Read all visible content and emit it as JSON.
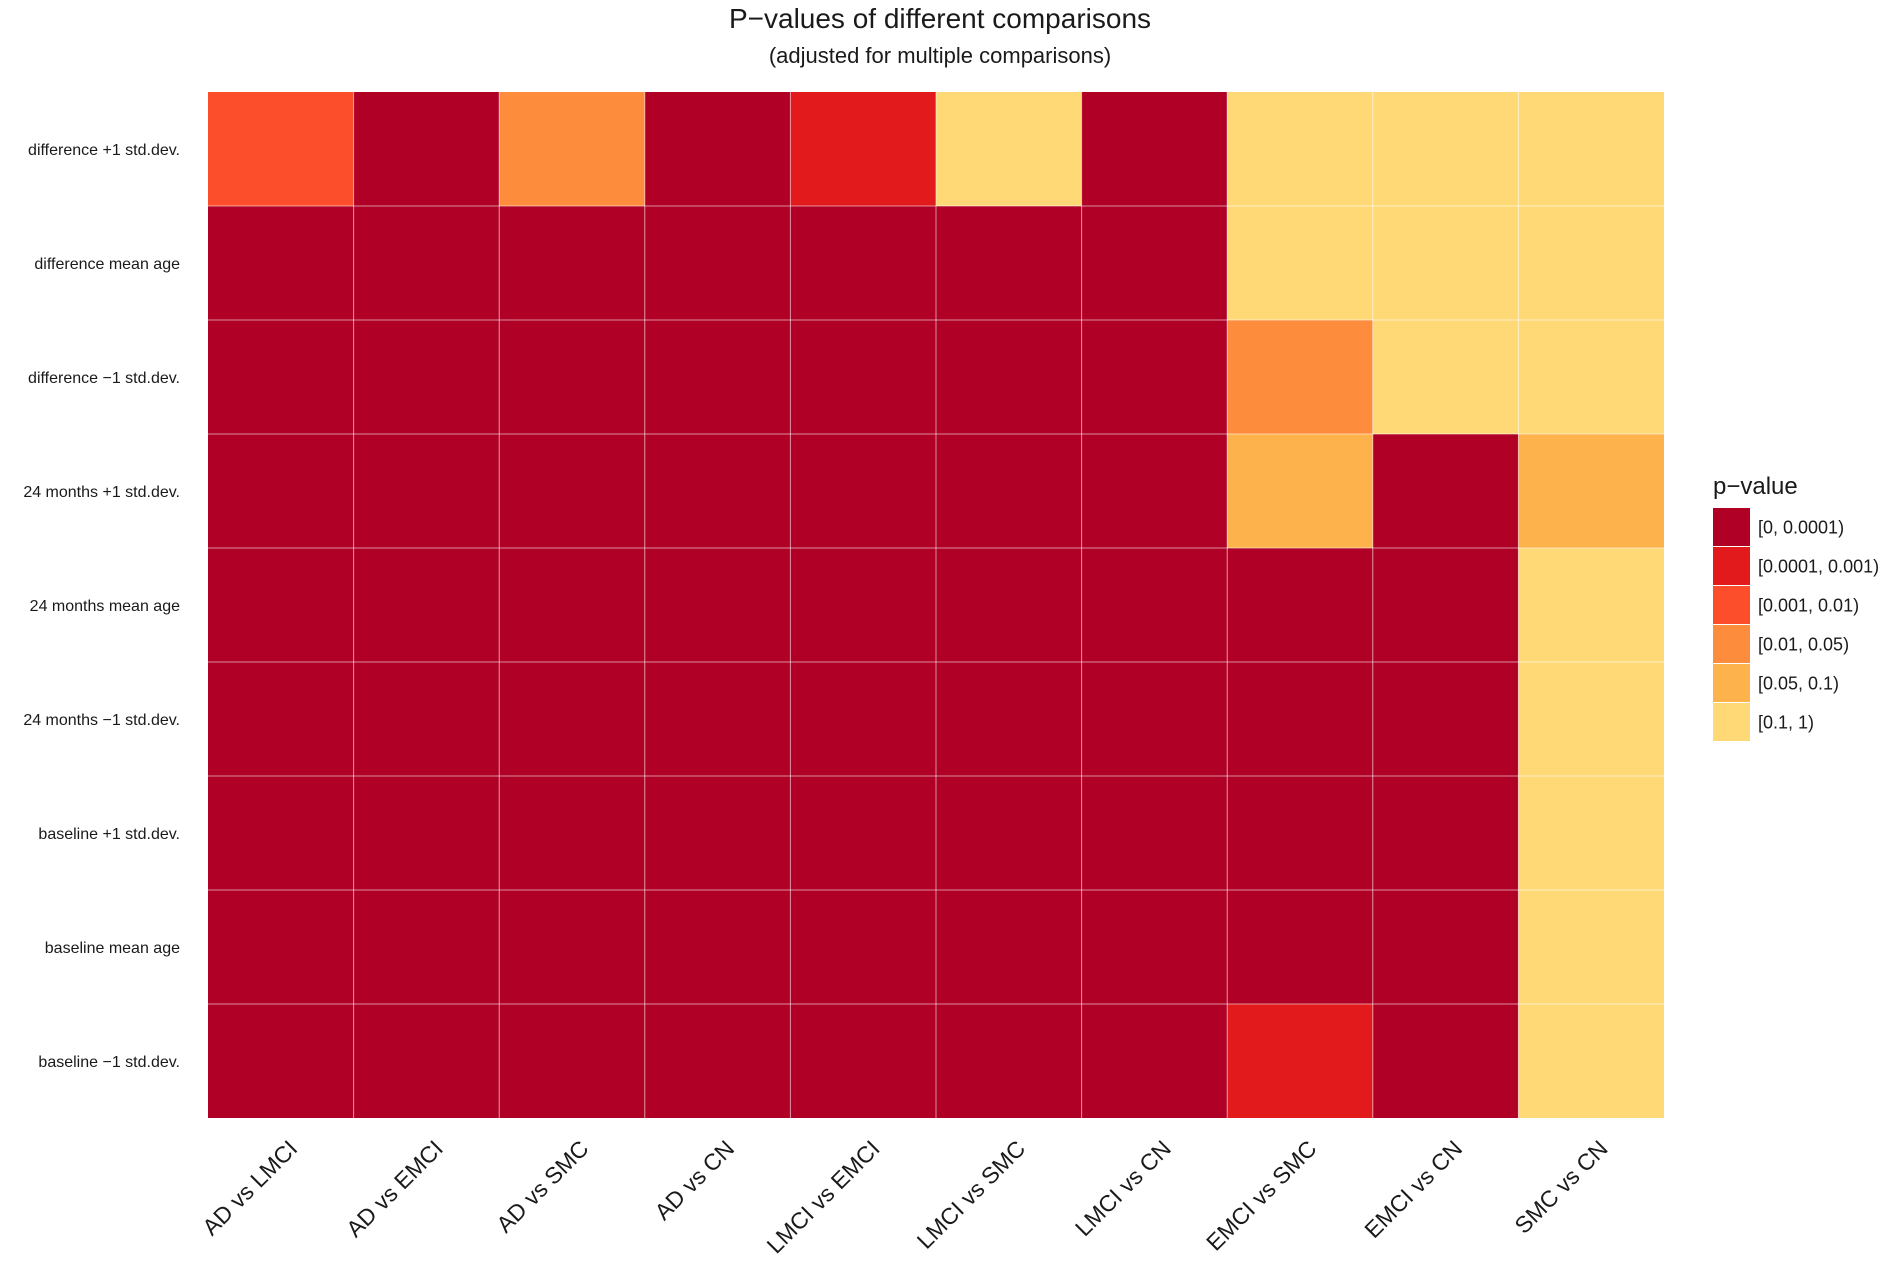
{
  "chart_data": {
    "type": "heatmap",
    "title": "P−values of different comparisons",
    "subtitle": "(adjusted for multiple comparisons)",
    "x_categories": [
      "AD vs LMCI",
      "AD vs EMCI",
      "AD vs SMC",
      "AD vs CN",
      "LMCI vs EMCI",
      "LMCI vs SMC",
      "LMCI vs CN",
      "EMCI vs SMC",
      "EMCI vs CN",
      "SMC vs CN"
    ],
    "y_categories": [
      "difference +1 std.dev.",
      "difference mean age",
      "difference −1 std.dev.",
      "24 months +1 std.dev.",
      "24 months mean age",
      "24 months −1 std.dev.",
      "baseline +1 std.dev.",
      "baseline mean age",
      "baseline −1 std.dev."
    ],
    "legend": {
      "title": "p−value",
      "position": "right",
      "bins": [
        {
          "label": "[0, 0.0001)",
          "color": "#b10026"
        },
        {
          "label": "[0.0001, 0.001)",
          "color": "#e31a1c"
        },
        {
          "label": "[0.001, 0.01)",
          "color": "#fc4e2a"
        },
        {
          "label": "[0.01, 0.05)",
          "color": "#fd8d3c"
        },
        {
          "label": "[0.05, 0.1)",
          "color": "#feb24c"
        },
        {
          "label": "[0.1, 1)",
          "color": "#fed976"
        }
      ]
    },
    "cells": [
      [
        2,
        0,
        3,
        0,
        1,
        5,
        0,
        5,
        5,
        5
      ],
      [
        0,
        0,
        0,
        0,
        0,
        0,
        0,
        5,
        5,
        5
      ],
      [
        0,
        0,
        0,
        0,
        0,
        0,
        0,
        3,
        5,
        5
      ],
      [
        0,
        0,
        0,
        0,
        0,
        0,
        0,
        4,
        0,
        4
      ],
      [
        0,
        0,
        0,
        0,
        0,
        0,
        0,
        0,
        0,
        5
      ],
      [
        0,
        0,
        0,
        0,
        0,
        0,
        0,
        0,
        0,
        5
      ],
      [
        0,
        0,
        0,
        0,
        0,
        0,
        0,
        0,
        0,
        5
      ],
      [
        0,
        0,
        0,
        0,
        0,
        0,
        0,
        0,
        0,
        5
      ],
      [
        0,
        0,
        0,
        0,
        0,
        0,
        0,
        1,
        0,
        5
      ]
    ],
    "grid": true
  }
}
